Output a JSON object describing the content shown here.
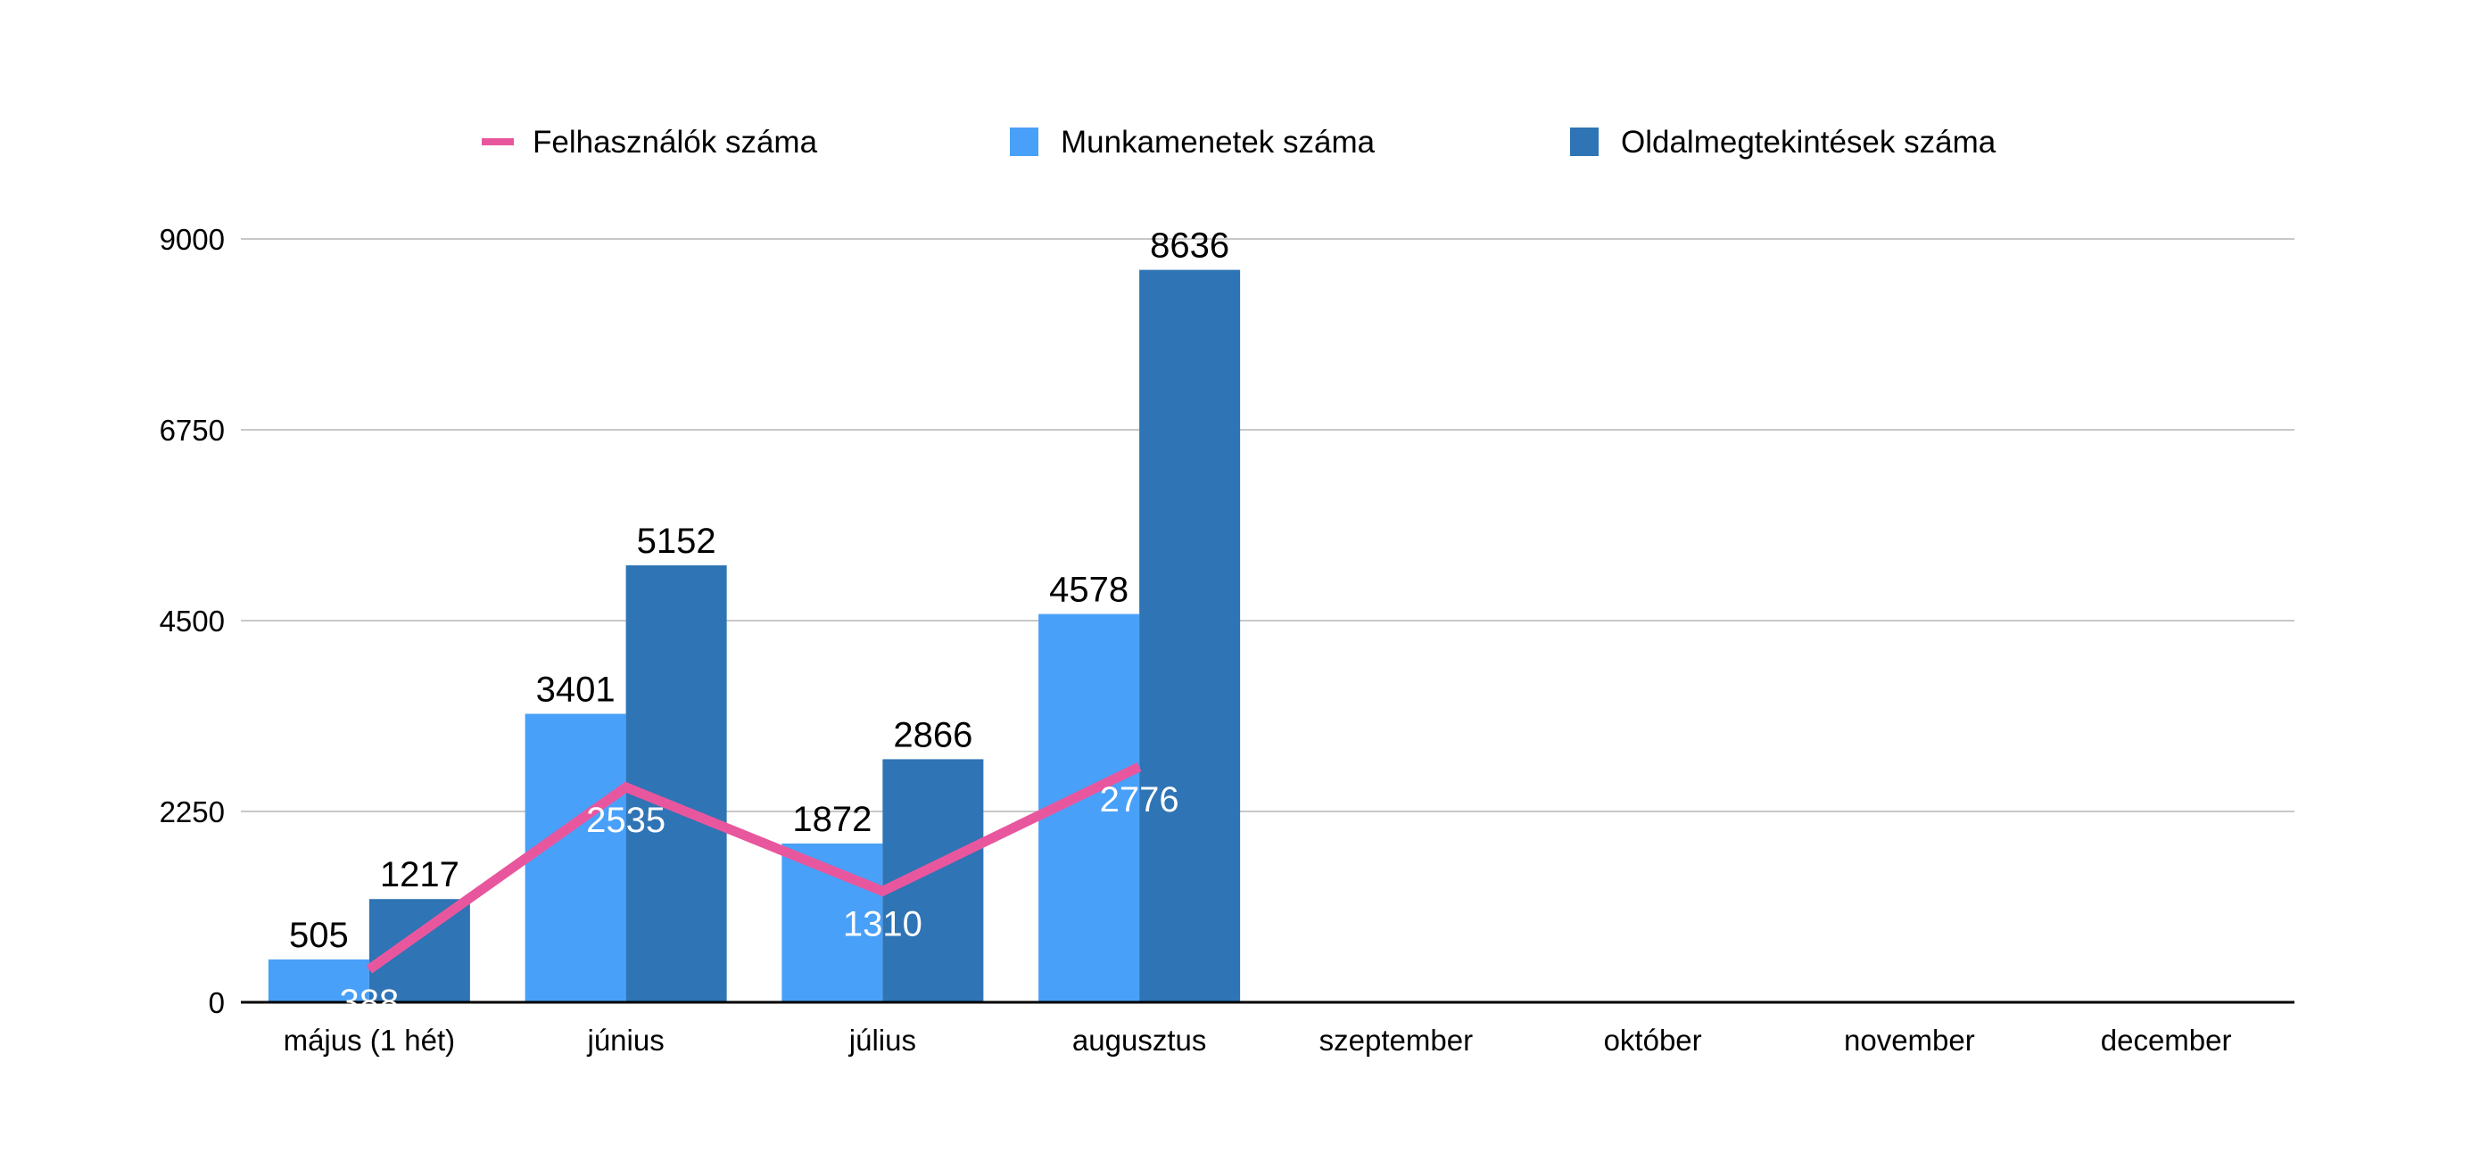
{
  "chart_data": {
    "type": "bar",
    "categories": [
      "május (1 hét)",
      "június",
      "július",
      "augusztus",
      "szeptember",
      "október",
      "november",
      "december"
    ],
    "series": [
      {
        "name": "Munkamenetek száma",
        "kind": "bar",
        "color": "#48A0F8",
        "values": [
          505,
          3401,
          1872,
          4578,
          null,
          null,
          null,
          null
        ]
      },
      {
        "name": "Oldalmegtekintések száma",
        "kind": "bar",
        "color": "#2F74B5",
        "values": [
          1217,
          5152,
          2866,
          8636,
          null,
          null,
          null,
          null
        ]
      },
      {
        "name": "Felhasználók száma",
        "kind": "line",
        "color": "#E8579E",
        "values": [
          388,
          2535,
          1310,
          2776,
          null,
          null,
          null,
          null
        ]
      }
    ],
    "legend_order": [
      "Felhasználók száma",
      "Munkamenetek száma",
      "Oldalmegtekintések száma"
    ],
    "ylim": [
      0,
      9000
    ],
    "yticks": [
      "0",
      "2250",
      "4500",
      "6750",
      "9000"
    ],
    "grid": true,
    "legend_position": "top"
  }
}
